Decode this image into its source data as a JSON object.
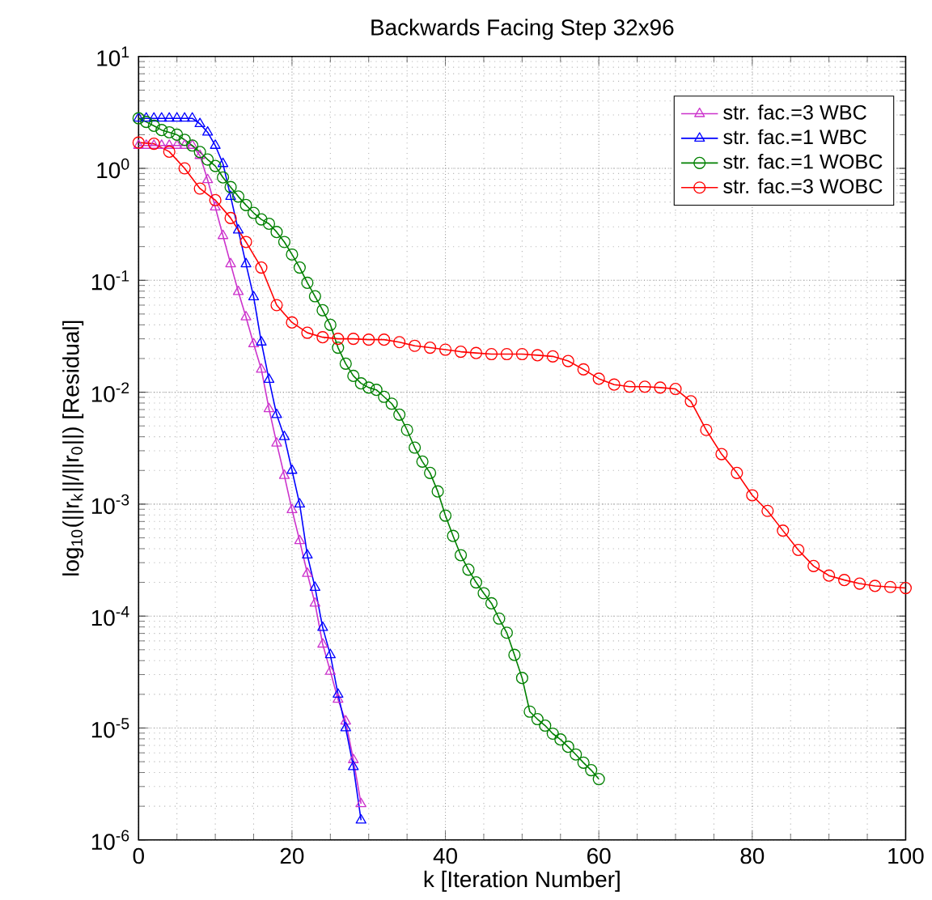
{
  "chart_data": {
    "type": "line",
    "title": "Backwards Facing Step 32x96",
    "xlabel": "k [Iteration Number]",
    "ylabel": "log$_{10}$(||r$_{k}$||/||r$_{0}$||) [Residual]",
    "log": "y",
    "grid": true,
    "legend": "top right",
    "line_style": "solid",
    "xlim": [
      0,
      100
    ],
    "xticks": [
      0,
      20,
      40,
      60,
      80,
      100
    ],
    "ylim": [
      1e-06,
      10
    ],
    "yticks": [
      {
        "value": 1e-06,
        "label": "10$^{-6}$"
      },
      {
        "value": 1e-05,
        "label": "10$^{-5}$"
      },
      {
        "value": 0.0001,
        "label": "10$^{-4}$"
      },
      {
        "value": 0.001,
        "label": "10$^{-3}$"
      },
      {
        "value": 0.01,
        "label": "10$^{-2}$"
      },
      {
        "value": 0.1,
        "label": "10$^{-1}$"
      },
      {
        "value": 1,
        "label": "10$^{0}$"
      },
      {
        "value": 10,
        "label": "10$^{1}$"
      }
    ],
    "series": [
      {
        "name": "str. fac.=3 WBC",
        "color": "#cc33cc",
        "marker": "triangle",
        "x": [
          0,
          1,
          2,
          3,
          4,
          5,
          6,
          7,
          8,
          9,
          10,
          11,
          12,
          13,
          14,
          15,
          16,
          17,
          18,
          19,
          20,
          21,
          22,
          23,
          24,
          25,
          26,
          27,
          28,
          29
        ],
        "values": [
          1.6,
          1.6,
          1.6,
          1.6,
          1.6,
          1.6,
          1.6,
          1.6,
          1.3,
          0.79,
          0.45,
          0.25,
          0.14,
          0.079,
          0.047,
          0.027,
          0.016,
          0.0071,
          0.0035,
          0.0018,
          0.00089,
          0.00047,
          0.00024,
          0.00013,
          5.6e-05,
          3.2e-05,
          1.8e-05,
          1.15e-05,
          5.2e-06,
          2.1e-06
        ]
      },
      {
        "name": "str. fac.=1 WBC",
        "color": "#0000ff",
        "marker": "triangle",
        "x": [
          0,
          1,
          2,
          3,
          4,
          5,
          6,
          7,
          8,
          9,
          10,
          11,
          12,
          13,
          14,
          15,
          16,
          17,
          18,
          19,
          20,
          21,
          22,
          23,
          24,
          25,
          26,
          27,
          28,
          29
        ],
        "values": [
          2.8,
          2.8,
          2.8,
          2.8,
          2.8,
          2.8,
          2.8,
          2.8,
          2.5,
          2.1,
          1.6,
          1.1,
          0.56,
          0.28,
          0.14,
          0.071,
          0.028,
          0.013,
          0.0063,
          0.004,
          0.002,
          0.001,
          0.00035,
          0.00018,
          7.9e-05,
          4.5e-05,
          2e-05,
          1e-05,
          4.5e-06,
          1.5e-06
        ]
      },
      {
        "name": "str. fac.=1 WOBC",
        "color": "#008000",
        "marker": "circle",
        "x": [
          0,
          1,
          2,
          3,
          4,
          5,
          6,
          7,
          8,
          9,
          10,
          11,
          12,
          13,
          14,
          15,
          16,
          17,
          18,
          19,
          20,
          21,
          22,
          23,
          24,
          25,
          26,
          27,
          28,
          29,
          30,
          31,
          32,
          33,
          34,
          35,
          36,
          37,
          38,
          39,
          40,
          41,
          42,
          43,
          44,
          45,
          46,
          47,
          48,
          49,
          50,
          51,
          52,
          53,
          54,
          55,
          56,
          57,
          58,
          59,
          60
        ],
        "values": [
          2.8,
          2.6,
          2.4,
          2.2,
          2.1,
          2.0,
          1.8,
          1.6,
          1.4,
          1.2,
          1.05,
          0.83,
          0.68,
          0.56,
          0.47,
          0.4,
          0.35,
          0.32,
          0.27,
          0.22,
          0.17,
          0.13,
          0.095,
          0.072,
          0.054,
          0.04,
          0.025,
          0.018,
          0.014,
          0.012,
          0.011,
          0.0105,
          0.0091,
          0.0079,
          0.0063,
          0.0046,
          0.0032,
          0.0024,
          0.0019,
          0.0013,
          0.00079,
          0.00052,
          0.00035,
          0.00026,
          0.0002,
          0.00016,
          0.00013,
          9.5e-05,
          7.1e-05,
          4.5e-05,
          2.8e-05,
          1.4e-05,
          1.2e-05,
          1.05e-05,
          8.9e-06,
          7.9e-06,
          6.8e-06,
          5.8e-06,
          4.9e-06,
          4.2e-06,
          3.5e-06
        ]
      },
      {
        "name": "str. fac.=3 WOBC",
        "color": "#ff0000",
        "marker": "circle",
        "x": [
          0,
          2,
          4,
          6,
          8,
          10,
          12,
          14,
          16,
          18,
          20,
          22,
          24,
          26,
          28,
          30,
          32,
          34,
          36,
          38,
          40,
          42,
          44,
          46,
          48,
          50,
          52,
          54,
          56,
          58,
          60,
          62,
          64,
          66,
          68,
          70,
          72,
          74,
          76,
          78,
          80,
          82,
          84,
          86,
          88,
          90,
          92,
          94,
          96,
          98,
          100
        ],
        "values": [
          1.7,
          1.66,
          1.41,
          1.0,
          0.66,
          0.52,
          0.36,
          0.22,
          0.13,
          0.06,
          0.042,
          0.034,
          0.031,
          0.03,
          0.03,
          0.0295,
          0.0295,
          0.028,
          0.026,
          0.025,
          0.024,
          0.023,
          0.0224,
          0.0219,
          0.0219,
          0.0219,
          0.0214,
          0.0209,
          0.019,
          0.016,
          0.0132,
          0.0117,
          0.0112,
          0.0112,
          0.011,
          0.0107,
          0.0083,
          0.0046,
          0.0028,
          0.0019,
          0.0012,
          0.00087,
          0.00058,
          0.00039,
          0.00028,
          0.00023,
          0.00021,
          0.000195,
          0.000186,
          0.000182,
          0.000178
        ]
      }
    ]
  }
}
